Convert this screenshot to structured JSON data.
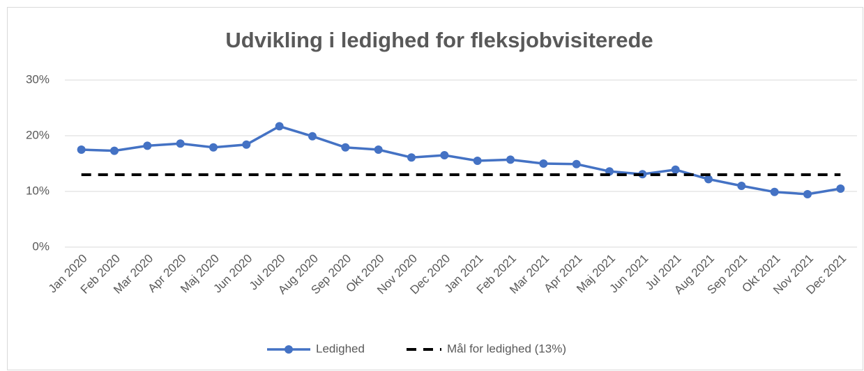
{
  "chart_data": {
    "type": "line",
    "title": "Udvikling i ledighed for fleksjobvisiterede",
    "categories": [
      "Jan 2020",
      "Feb 2020",
      "Mar 2020",
      "Apr 2020",
      "Maj 2020",
      "Jun 2020",
      "Jul 2020",
      "Aug 2020",
      "Sep 2020",
      "Okt 2020",
      "Nov 2020",
      "Dec 2020",
      "Jan 2021",
      "Feb 2021",
      "Mar 2021",
      "Apr 2021",
      "Maj 2021",
      "Jun 2021",
      "Jul 2021",
      "Aug 2021",
      "Sep 2021",
      "Okt 2021",
      "Nov 2021",
      "Dec 2021"
    ],
    "series": [
      {
        "name": "Ledighed",
        "color": "#4472c4",
        "style": "solid",
        "markers": true,
        "values": [
          17.5,
          17.3,
          18.2,
          18.6,
          17.9,
          18.4,
          21.7,
          19.9,
          17.9,
          17.5,
          16.1,
          16.5,
          15.5,
          15.7,
          15.0,
          14.9,
          13.6,
          13.1,
          13.9,
          12.2,
          11.0,
          9.9,
          9.5,
          10.5
        ]
      },
      {
        "name": "Mål for ledighed (13%)",
        "color": "#000000",
        "style": "dashed",
        "markers": false,
        "values": [
          13,
          13,
          13,
          13,
          13,
          13,
          13,
          13,
          13,
          13,
          13,
          13,
          13,
          13,
          13,
          13,
          13,
          13,
          13,
          13,
          13,
          13,
          13,
          13
        ]
      }
    ],
    "ylim": [
      0,
      30
    ],
    "yticks": [
      {
        "value": 0,
        "label": "0%"
      },
      {
        "value": 10,
        "label": "10%"
      },
      {
        "value": 20,
        "label": "20%"
      },
      {
        "value": 30,
        "label": "30%"
      }
    ],
    "grid": true,
    "legend": "bottom"
  }
}
